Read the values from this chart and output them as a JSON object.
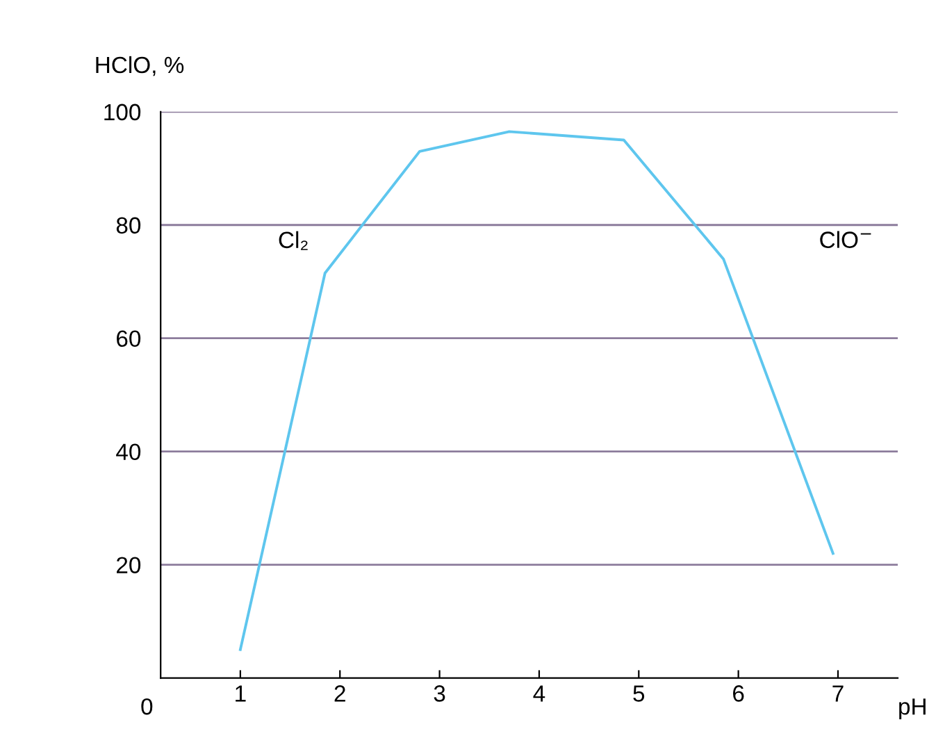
{
  "chart_data": {
    "type": "line",
    "xlabel": "pH",
    "ylabel": "HClO, %",
    "x": [
      1,
      1.85,
      2.8,
      3.7,
      4.85,
      5.85,
      6.95
    ],
    "series": [
      {
        "color": "#5ec6ee",
        "values": [
          5,
          71.5,
          93,
          96.5,
          95,
          74,
          22
        ]
      }
    ],
    "xlim": [
      0.2,
      7.6
    ],
    "xticks": [
      1,
      2,
      3,
      4,
      5,
      6,
      7
    ],
    "ylim": [
      0,
      100
    ],
    "yticks": [
      20,
      40,
      60,
      80,
      100
    ],
    "grid": "y",
    "marker": "none",
    "line_style": "solid",
    "annotations": [
      "0",
      "Cl₂",
      "ClO$^{−}$"
    ]
  }
}
